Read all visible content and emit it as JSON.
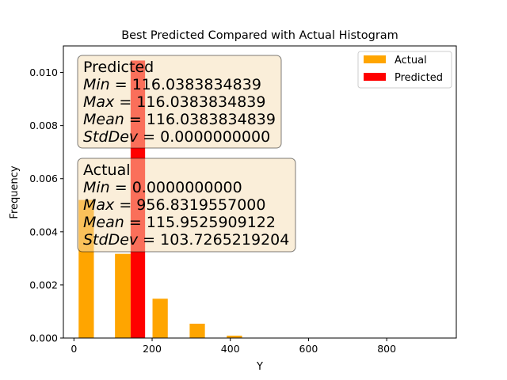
{
  "chart_data": {
    "type": "bar",
    "title": "Best Predicted Compared with Actual Histogram",
    "xlabel": "Y",
    "ylabel": "Frequency",
    "xlim": [
      -27,
      978
    ],
    "ylim": [
      0,
      0.011
    ],
    "grid": false,
    "legend_position": "upper right",
    "x_ticks": [
      {
        "value": 0,
        "label": "0"
      },
      {
        "value": 200,
        "label": "200"
      },
      {
        "value": 400,
        "label": "400"
      },
      {
        "value": 600,
        "label": "600"
      },
      {
        "value": 800,
        "label": "800"
      }
    ],
    "y_ticks": [
      {
        "value": 0.0,
        "label": "0.000"
      },
      {
        "value": 0.002,
        "label": "0.002"
      },
      {
        "value": 0.004,
        "label": "0.004"
      },
      {
        "value": 0.006,
        "label": "0.006"
      },
      {
        "value": 0.008,
        "label": "0.008"
      },
      {
        "value": 0.01,
        "label": "0.010"
      }
    ],
    "series": [
      {
        "name": "Actual",
        "color": "#ffa500",
        "bars": [
          {
            "x0": 12,
            "x1": 51,
            "value": 0.0052
          },
          {
            "x0": 105,
            "x1": 145,
            "value": 0.00317
          },
          {
            "x0": 201,
            "x1": 240,
            "value": 0.00148
          },
          {
            "x0": 296,
            "x1": 335,
            "value": 0.00054
          },
          {
            "x0": 391,
            "x1": 430,
            "value": 9e-05
          },
          {
            "x0": 486,
            "x1": 525,
            "value": 0.0
          },
          {
            "x0": 582,
            "x1": 621,
            "value": 0.0
          },
          {
            "x0": 677,
            "x1": 716,
            "value": 0.0
          },
          {
            "x0": 772,
            "x1": 811,
            "value": 0.0
          },
          {
            "x0": 867,
            "x1": 906,
            "value": 0.0
          }
        ]
      },
      {
        "name": "Predicted",
        "color": "#ff0000",
        "bars": [
          {
            "x0": 145,
            "x1": 182,
            "value": 0.01045
          }
        ]
      }
    ],
    "annotations": [
      {
        "id": "predicted",
        "title": "Predicted",
        "lines": [
          {
            "name": "Min",
            "value": "116.0383834839"
          },
          {
            "name": "Max",
            "value": "116.0383834839"
          },
          {
            "name": "Mean",
            "value": "116.0383834839"
          },
          {
            "name": "StdDev",
            "value": "0.0000000000"
          }
        ]
      },
      {
        "id": "actual",
        "title": "Actual",
        "lines": [
          {
            "name": "Min",
            "value": "0.0000000000"
          },
          {
            "name": "Max",
            "value": "956.8319557000"
          },
          {
            "name": "Mean",
            "value": "115.9525909122"
          },
          {
            "name": "StdDev",
            "value": "103.7265219204"
          }
        ]
      }
    ],
    "annotation_style": {
      "fill": "#f5deb3",
      "opacity": 0.5,
      "edge": "#000000"
    }
  }
}
